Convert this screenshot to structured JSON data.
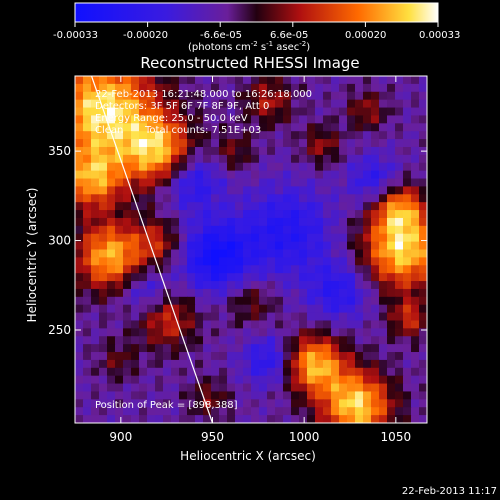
{
  "colorbar": {
    "ticks": [
      "-0.00033",
      "-0.00020",
      "-6.6e-05",
      "6.6e-05",
      "0.00020",
      "0.00033"
    ],
    "units_main": "(photons cm",
    "units_exp1": "-2",
    "units_mid": " s",
    "units_exp2": "-1",
    "units_mid2": " asec",
    "units_exp3": "-2",
    "units_end": ")"
  },
  "chart_data": {
    "type": "heatmap",
    "title": "Reconstructed RHESSI Image",
    "xlabel": "Heliocentric X (arcsec)",
    "ylabel": "Heliocentric Y (arcsec)",
    "xlim": [
      875,
      1067
    ],
    "ylim": [
      198,
      392
    ],
    "x_ticks": [
      "900",
      "950",
      "1000",
      "1050"
    ],
    "y_ticks": [
      "250",
      "300",
      "350"
    ],
    "color_range": [
      -0.00033,
      0.00033
    ],
    "colormap": "blue-purple-red-yellow-white",
    "grid": false,
    "annotations": {
      "time": "22-Feb-2013 16:21:48.000 to 16:26:18.000",
      "detectors": "Detectors: 3F 5F 6F 7F 8F 9F, Att 0",
      "energy": "Energy Range: 25.0 - 50.0 keV",
      "method": "Clean",
      "counts": "Total counts: 7.51E+03",
      "peak": "Position of Peak = [898,388]"
    },
    "limb_line": {
      "x": [
        884,
        950
      ],
      "y": [
        392,
        198
      ]
    }
  },
  "footer": {
    "timestamp": "22-Feb-2013 11:17"
  }
}
